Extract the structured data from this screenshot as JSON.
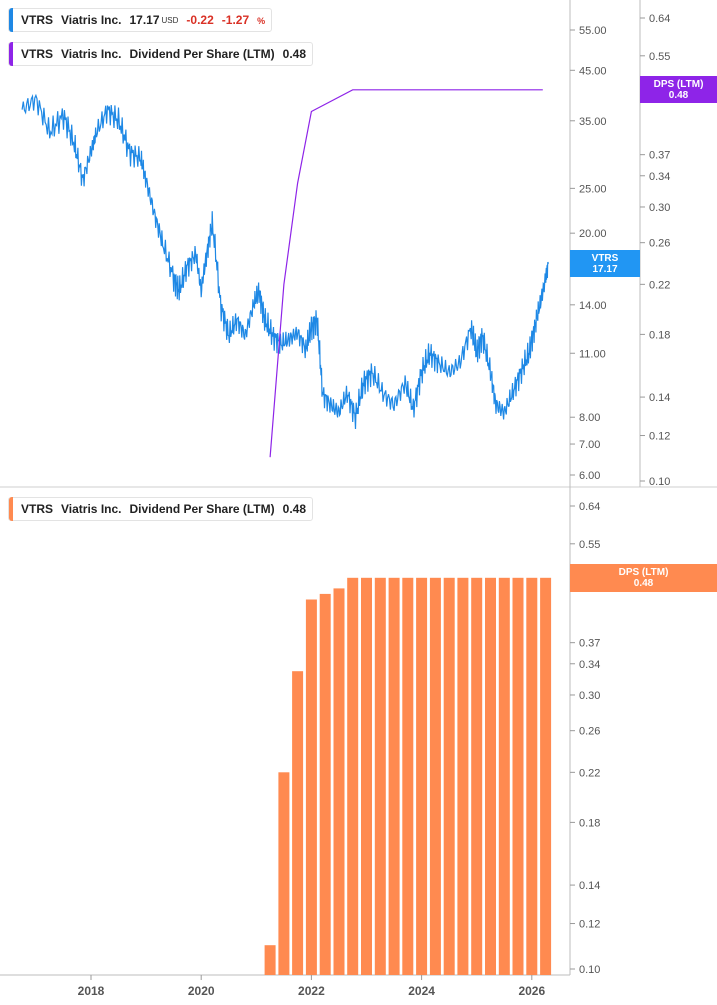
{
  "legends": {
    "price": {
      "ticker": "VTRS",
      "name": "Viatris Inc.",
      "price": "17.17",
      "currency": "USD",
      "change": "-0.22",
      "change_pct": "-1.27",
      "pct_sign": "%",
      "color": "#1e88e5"
    },
    "dps_top": {
      "ticker": "VTRS",
      "name": "Viatris Inc.",
      "metric": "Dividend Per Share (LTM)",
      "value": "0.48",
      "color": "#8e24e8"
    },
    "dps_bottom": {
      "ticker": "VTRS",
      "name": "Viatris Inc.",
      "metric": "Dividend Per Share (LTM)",
      "value": "0.48",
      "color": "#ff8a50"
    }
  },
  "tags": {
    "vtrs": {
      "line1": "VTRS",
      "line2": "17.17",
      "color": "#2196f3"
    },
    "dps_top": {
      "line1": "DPS (LTM)",
      "line2": "0.48",
      "color": "#8e24e8"
    },
    "dps_bottom": {
      "line1": "DPS (LTM)",
      "line2": "0.48",
      "color": "#ff8a50"
    }
  },
  "chart_data": [
    {
      "type": "line",
      "title": "VTRS Viatris Inc.",
      "series": [
        {
          "name": "VTRS Viatris Inc.",
          "color": "#1e88e5",
          "x": [
            2016.75,
            2017.0,
            2017.25,
            2017.5,
            2017.7,
            2017.85,
            2018.0,
            2018.1,
            2018.3,
            2018.5,
            2018.7,
            2018.9,
            2019.0,
            2019.15,
            2019.3,
            2019.5,
            2019.6,
            2019.75,
            2019.9,
            2020.0,
            2020.1,
            2020.2,
            2020.35,
            2020.5,
            2020.65,
            2020.8,
            2020.95,
            2021.05,
            2021.15,
            2021.3,
            2021.45,
            2021.6,
            2021.75,
            2021.9,
            2022.0,
            2022.1,
            2022.2,
            2022.35,
            2022.5,
            2022.65,
            2022.8,
            2022.95,
            2023.1,
            2023.3,
            2023.5,
            2023.7,
            2023.85,
            2024.0,
            2024.15,
            2024.3,
            2024.5,
            2024.7,
            2024.9,
            2025.0,
            2025.1,
            2025.25,
            2025.35,
            2025.5,
            2025.65,
            2025.8,
            2025.95,
            2026.05,
            2026.15,
            2026.25,
            2026.3
          ],
          "values": [
            37,
            39,
            33,
            36,
            31,
            26,
            30,
            33,
            37,
            35,
            30,
            29,
            26,
            22,
            19,
            16,
            15,
            17,
            18,
            15,
            18,
            21,
            14,
            12,
            13,
            12,
            14,
            15,
            13,
            12,
            11.5,
            11.8,
            12.2,
            11.2,
            12.5,
            13,
            9,
            8.5,
            8.2,
            9,
            8,
            9.5,
            10,
            9,
            8.5,
            9.5,
            8.3,
            10,
            11,
            10.5,
            10,
            10.5,
            12.5,
            11,
            12,
            10,
            8.5,
            8.2,
            9,
            10,
            11,
            12.5,
            14,
            16,
            17.17
          ]
        }
      ],
      "ylabel": "",
      "xlabel": "",
      "y_scale": "log",
      "yticks": [
        "55.00",
        "45.00",
        "35.00",
        "25.00",
        "20.00",
        "14.00",
        "11.00",
        "8.00",
        "7.00",
        "6.00"
      ],
      "ylim": [
        6,
        62
      ]
    },
    {
      "type": "line",
      "title": "Dividend Per Share (LTM)",
      "series": [
        {
          "name": "Dividend Per Share (LTM)",
          "color": "#8e24e8",
          "x": [
            2021.25,
            2021.5,
            2021.75,
            2022.0,
            2022.75,
            2026.2
          ],
          "values": [
            0.11,
            0.22,
            0.33,
            0.44,
            0.48,
            0.48
          ]
        }
      ],
      "y_scale": "log",
      "yticks": [
        "0.64",
        "0.55",
        "0.37",
        "0.34",
        "0.30",
        "0.26",
        "0.22",
        "0.18",
        "0.14",
        "0.12",
        "0.10"
      ],
      "ylim": [
        0.1,
        0.66
      ]
    },
    {
      "type": "bar",
      "title": "Dividend Per Share (LTM)",
      "series": [
        {
          "name": "Dividend Per Share (LTM)",
          "color": "#ff8a50",
          "x": [
            2021.25,
            2021.5,
            2021.75,
            2022.0,
            2022.25,
            2022.5,
            2022.75,
            2023.0,
            2023.25,
            2023.5,
            2023.75,
            2024.0,
            2024.25,
            2024.5,
            2024.75,
            2025.0,
            2025.25,
            2025.5,
            2025.75,
            2026.0,
            2026.25
          ],
          "values": [
            0.11,
            0.22,
            0.33,
            0.44,
            0.45,
            0.46,
            0.48,
            0.48,
            0.48,
            0.48,
            0.48,
            0.48,
            0.48,
            0.48,
            0.48,
            0.48,
            0.48,
            0.48,
            0.48,
            0.48,
            0.48
          ]
        }
      ],
      "y_scale": "log",
      "yticks": [
        "0.64",
        "0.55",
        "0.37",
        "0.34",
        "0.30",
        "0.26",
        "0.22",
        "0.18",
        "0.14",
        "0.12",
        "0.10"
      ],
      "ylim": [
        0.1,
        0.66
      ],
      "xticks": [
        "2018",
        "2020",
        "2022",
        "2024",
        "2026"
      ]
    }
  ]
}
